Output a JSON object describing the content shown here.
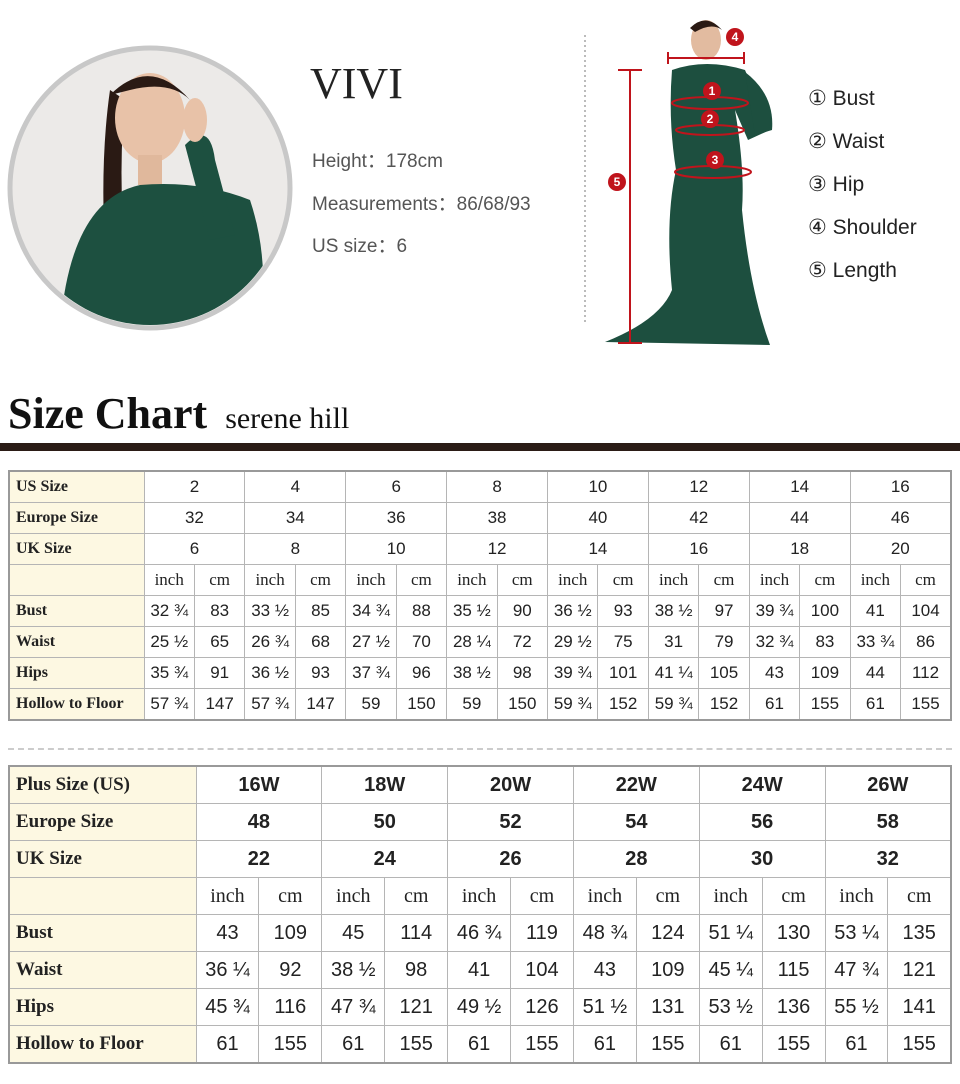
{
  "model": {
    "name": "VIVI",
    "height": "Height：178cm",
    "measurements": "Measurements：86/68/93",
    "us_size": "US size：6"
  },
  "diagram": {
    "markers": [
      "1",
      "2",
      "3",
      "4",
      "5"
    ],
    "legend": [
      "① Bust",
      "② Waist",
      "③ Hip",
      "④ Shoulder",
      "⑤ Length"
    ]
  },
  "heading": {
    "title": "Size Chart",
    "subtitle": "serene hill"
  },
  "tables": [
    {
      "size_rows": [
        [
          "US Size",
          "2",
          "4",
          "6",
          "8",
          "10",
          "12",
          "14",
          "16"
        ],
        [
          "Europe Size",
          "32",
          "34",
          "36",
          "38",
          "40",
          "42",
          "44",
          "46"
        ],
        [
          "UK Size",
          "6",
          "8",
          "10",
          "12",
          "14",
          "16",
          "18",
          "20"
        ]
      ],
      "unit_row": [
        "inch",
        "cm",
        "inch",
        "cm",
        "inch",
        "cm",
        "inch",
        "cm",
        "inch",
        "cm",
        "inch",
        "cm",
        "inch",
        "cm",
        "inch",
        "cm"
      ],
      "measure_rows": [
        [
          "Bust",
          "32 ¾",
          "83",
          "33 ½",
          "85",
          "34 ¾",
          "88",
          "35 ½",
          "90",
          "36 ½",
          "93",
          "38 ½",
          "97",
          "39 ¾",
          "100",
          "41",
          "104"
        ],
        [
          "Waist",
          "25 ½",
          "65",
          "26 ¾",
          "68",
          "27 ½",
          "70",
          "28 ¼",
          "72",
          "29 ½",
          "75",
          "31",
          "79",
          "32 ¾",
          "83",
          "33 ¾",
          "86"
        ],
        [
          "Hips",
          "35 ¾",
          "91",
          "36 ½",
          "93",
          "37 ¾",
          "96",
          "38 ½",
          "98",
          "39 ¾",
          "101",
          "41 ¼",
          "105",
          "43",
          "109",
          "44",
          "112"
        ],
        [
          "Hollow to Floor",
          "57 ¾",
          "147",
          "57 ¾",
          "147",
          "59",
          "150",
          "59",
          "150",
          "59 ¾",
          "152",
          "59 ¾",
          "152",
          "61",
          "155",
          "61",
          "155"
        ]
      ]
    },
    {
      "size_rows": [
        [
          "Plus Size (US)",
          "16W",
          "18W",
          "20W",
          "22W",
          "24W",
          "26W"
        ],
        [
          "Europe Size",
          "48",
          "50",
          "52",
          "54",
          "56",
          "58"
        ],
        [
          "UK Size",
          "22",
          "24",
          "26",
          "28",
          "30",
          "32"
        ]
      ],
      "unit_row": [
        "inch",
        "cm",
        "inch",
        "cm",
        "inch",
        "cm",
        "inch",
        "cm",
        "inch",
        "cm",
        "inch",
        "cm"
      ],
      "measure_rows": [
        [
          "Bust",
          "43",
          "109",
          "45",
          "114",
          "46 ¾",
          "119",
          "48 ¾",
          "124",
          "51 ¼",
          "130",
          "53 ¼",
          "135"
        ],
        [
          "Waist",
          "36 ¼",
          "92",
          "38 ½",
          "98",
          "41",
          "104",
          "43",
          "109",
          "45 ¼",
          "115",
          "47 ¾",
          "121"
        ],
        [
          "Hips",
          "45 ¾",
          "116",
          "47 ¾",
          "121",
          "49 ½",
          "126",
          "51 ½",
          "131",
          "53 ½",
          "136",
          "55 ½",
          "141"
        ],
        [
          "Hollow to Floor",
          "61",
          "155",
          "61",
          "155",
          "61",
          "155",
          "61",
          "155",
          "61",
          "155",
          "61",
          "155"
        ]
      ]
    }
  ]
}
